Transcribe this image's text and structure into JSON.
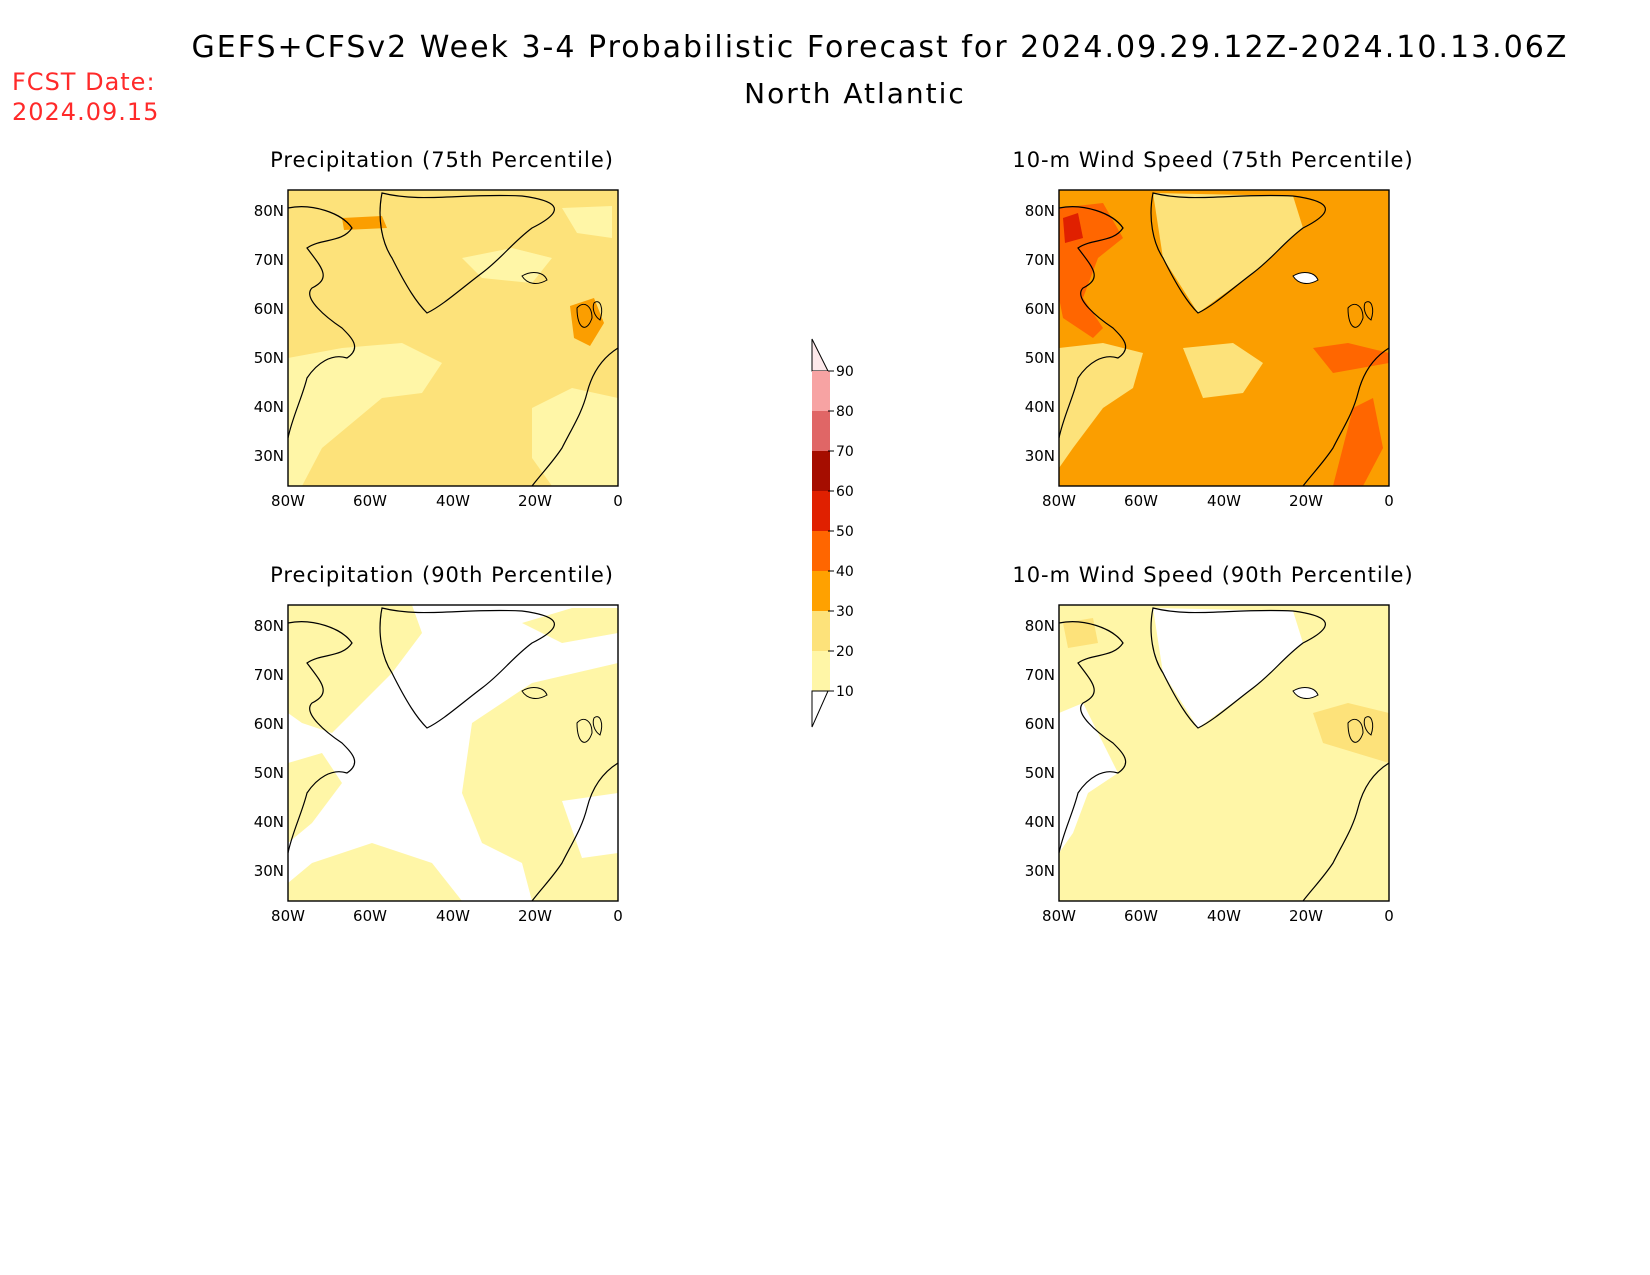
{
  "header": {
    "title": "GEFS+CFSv2 Week 3-4 Probabilistic Forecast for 2024.09.29.12Z-2024.10.13.06Z",
    "subtitle": "North Atlantic",
    "fcst_label": "FCST Date:",
    "fcst_value": "2024.09.15"
  },
  "axes": {
    "lat_labels": [
      "80N",
      "70N",
      "60N",
      "50N",
      "40N",
      "30N"
    ],
    "lon_labels": [
      "80W",
      "60W",
      "40W",
      "20W",
      "0"
    ]
  },
  "panels": [
    {
      "id": "precip75",
      "title": "Precipitation (75th Percentile)",
      "base_color": "#fde27a"
    },
    {
      "id": "wind75",
      "title": "10-m Wind Speed (75th Percentile)",
      "base_color": "#fb9e00"
    },
    {
      "id": "precip90",
      "title": "Precipitation (90th Percentile)",
      "base_color": "#ffffff"
    },
    {
      "id": "wind90",
      "title": "10-m Wind Speed (90th Percentile)",
      "base_color": "#fff6a7"
    }
  ],
  "colorbar": {
    "labels": [
      "90",
      "80",
      "70",
      "60",
      "50",
      "40",
      "30",
      "20",
      "10"
    ],
    "colors": [
      "#f7a3a3",
      "#e06666",
      "#a50d00",
      "#e02000",
      "#ff6600",
      "#ffa100",
      "#fde27a",
      "#fff6a7"
    ]
  }
}
